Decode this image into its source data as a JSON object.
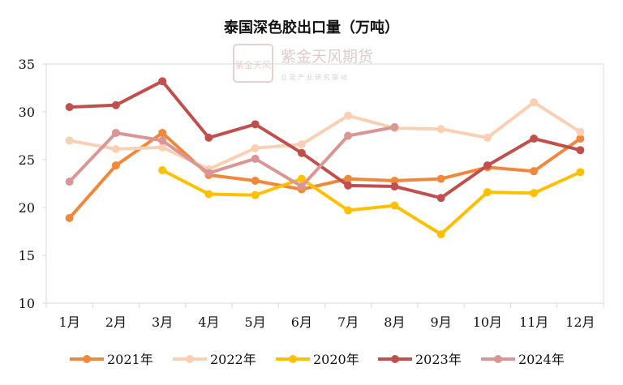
{
  "chart_data": {
    "type": "line",
    "title": "泰国深色胶出口量（万吨）",
    "xlabel": "",
    "ylabel": "",
    "categories": [
      "1月",
      "2月",
      "3月",
      "4月",
      "5月",
      "6月",
      "7月",
      "8月",
      "9月",
      "10月",
      "11月",
      "12月"
    ],
    "ylim": [
      10,
      35
    ],
    "yticks": [
      "35",
      "30",
      "25",
      "20",
      "15",
      "10"
    ],
    "grid": false,
    "legend_position": "bottom",
    "series": [
      {
        "name": "2021年",
        "color": "#F0883C",
        "values": [
          18.9,
          24.4,
          27.8,
          23.4,
          22.8,
          21.9,
          23.0,
          22.8,
          23.0,
          24.2,
          23.8,
          27.2
        ]
      },
      {
        "name": "2022年",
        "color": "#FAD0B4",
        "values": [
          27.0,
          26.1,
          26.3,
          24.0,
          26.2,
          26.6,
          29.6,
          28.3,
          28.2,
          27.3,
          31.0,
          27.9
        ]
      },
      {
        "name": "2020年",
        "color": "#FFC000",
        "values": [
          null,
          null,
          23.9,
          21.4,
          21.3,
          23.0,
          19.7,
          20.2,
          17.2,
          21.6,
          21.5,
          23.7
        ]
      },
      {
        "name": "2023年",
        "color": "#C0504D",
        "values": [
          30.5,
          30.7,
          33.2,
          27.3,
          28.7,
          25.7,
          22.3,
          22.2,
          21.0,
          24.4,
          27.2,
          26.0
        ]
      },
      {
        "name": "2024年",
        "color": "#D99694",
        "values": [
          22.7,
          27.8,
          27.0,
          23.6,
          25.1,
          22.2,
          27.5,
          28.4,
          null,
          null,
          null,
          null
        ]
      }
    ]
  },
  "watermark": {
    "logo_text": "紫金天风",
    "company": "紫金天风期货",
    "slogan": "立 足 产 业   研 究 驱 动",
    "color": "#D9C4C4"
  }
}
